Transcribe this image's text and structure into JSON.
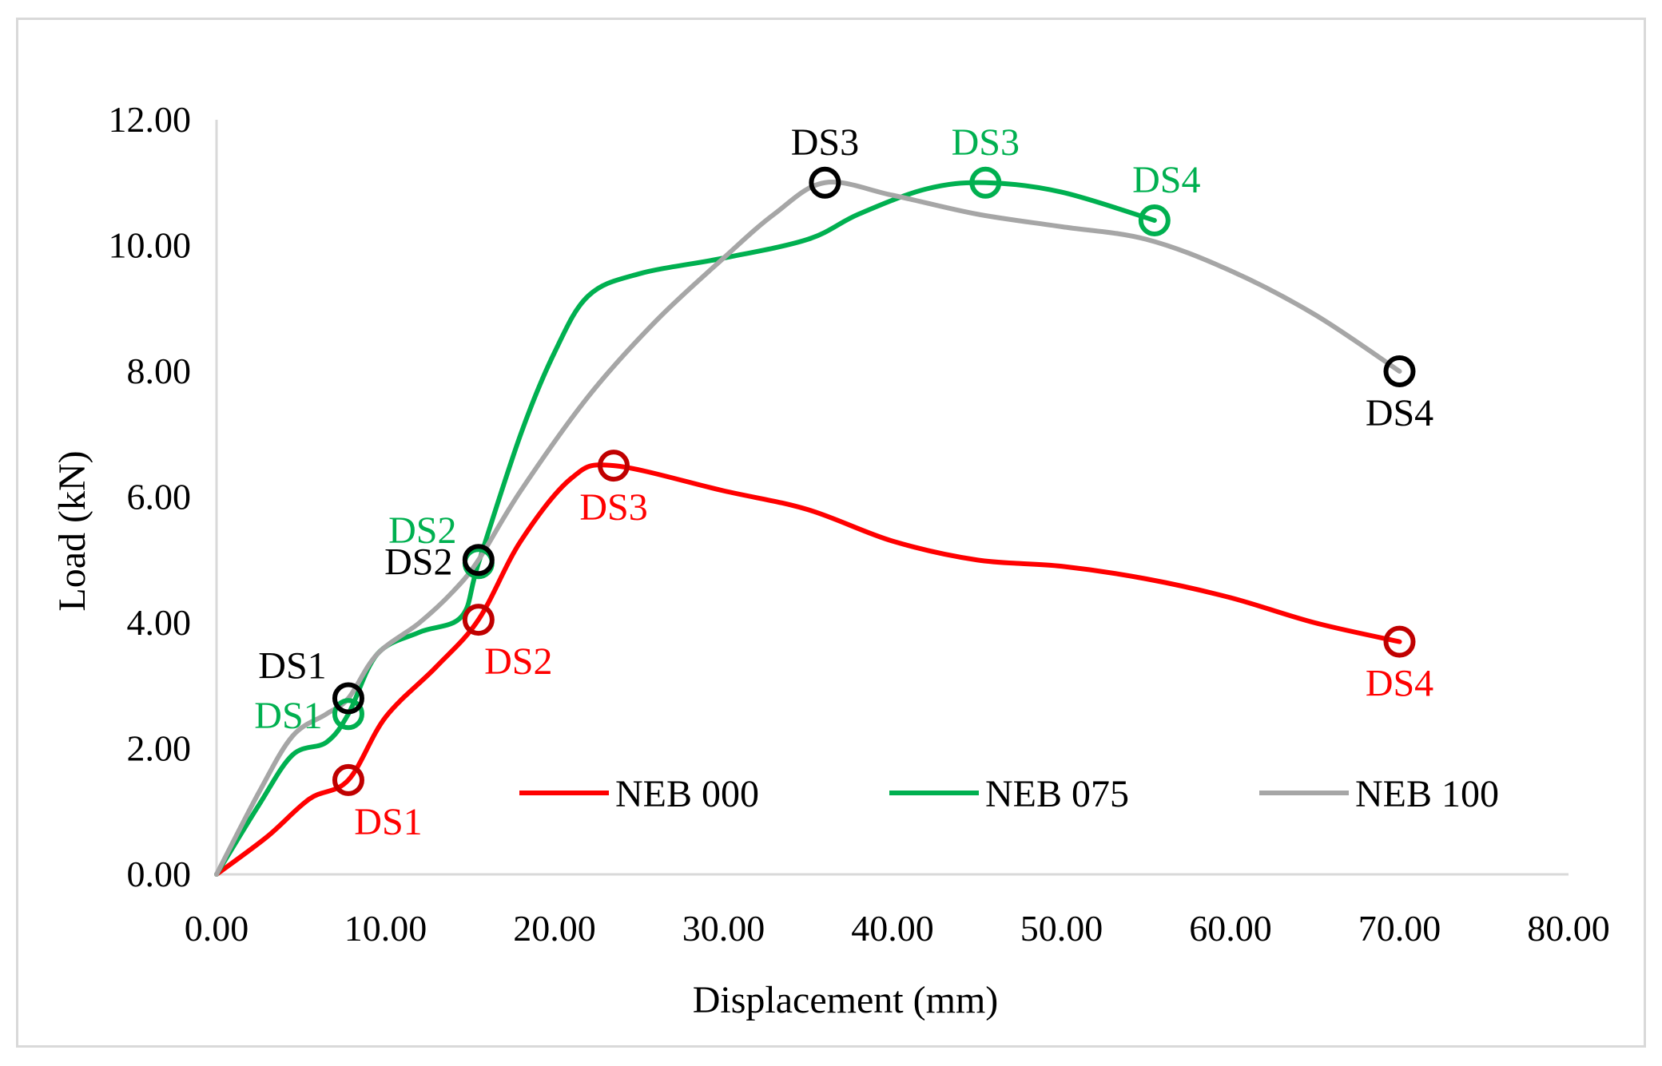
{
  "chart_data": {
    "type": "line",
    "title": "",
    "xlabel": "Displacement (mm)",
    "ylabel": "Load (kN)",
    "xlim": [
      0,
      80
    ],
    "ylim": [
      0,
      12
    ],
    "xticks": [
      0,
      10,
      20,
      30,
      40,
      50,
      60,
      70,
      80
    ],
    "yticks": [
      0,
      2,
      4,
      6,
      8,
      10,
      12
    ],
    "xtick_labels": [
      "0.00",
      "10.00",
      "20.00",
      "30.00",
      "40.00",
      "50.00",
      "60.00",
      "70.00",
      "80.00"
    ],
    "ytick_labels": [
      "0.00",
      "2.00",
      "4.00",
      "6.00",
      "8.00",
      "10.00",
      "12.00"
    ],
    "grid": false,
    "legend_position": "inside-bottom-right",
    "series": [
      {
        "name": "NEB 000",
        "color": "#ff0000",
        "marker_color": "#c00000",
        "label_color": "#ff0000",
        "points": [
          [
            0,
            0
          ],
          [
            3,
            0.6
          ],
          [
            5.5,
            1.2
          ],
          [
            7.8,
            1.5
          ],
          [
            10,
            2.5
          ],
          [
            13,
            3.3
          ],
          [
            15.5,
            4.05
          ],
          [
            18,
            5.3
          ],
          [
            21,
            6.3
          ],
          [
            23.5,
            6.5
          ],
          [
            30,
            6.1
          ],
          [
            35,
            5.8
          ],
          [
            40,
            5.3
          ],
          [
            45,
            5.0
          ],
          [
            50,
            4.9
          ],
          [
            55,
            4.7
          ],
          [
            60,
            4.4
          ],
          [
            65,
            4.0
          ],
          [
            70,
            3.7
          ]
        ],
        "damage_states": [
          {
            "label": "DS1",
            "x": 7.8,
            "y": 1.5,
            "label_pos": "below-right"
          },
          {
            "label": "DS2",
            "x": 15.5,
            "y": 4.05,
            "label_pos": "below-right"
          },
          {
            "label": "DS3",
            "x": 23.5,
            "y": 6.5,
            "label_pos": "below"
          },
          {
            "label": "DS4",
            "x": 70,
            "y": 3.7,
            "label_pos": "below"
          }
        ]
      },
      {
        "name": "NEB 075",
        "color": "#00b050",
        "marker_color": "#00b050",
        "label_color": "#00b050",
        "points": [
          [
            0,
            0
          ],
          [
            2.5,
            1.1
          ],
          [
            4.5,
            1.9
          ],
          [
            6.5,
            2.1
          ],
          [
            7.8,
            2.55
          ],
          [
            9.5,
            3.5
          ],
          [
            12,
            3.85
          ],
          [
            14.5,
            4.1
          ],
          [
            15.5,
            4.95
          ],
          [
            18,
            7.0
          ],
          [
            20,
            8.3
          ],
          [
            22,
            9.2
          ],
          [
            25,
            9.55
          ],
          [
            30,
            9.8
          ],
          [
            35,
            10.1
          ],
          [
            38,
            10.5
          ],
          [
            42,
            10.9
          ],
          [
            45.5,
            11.0
          ],
          [
            50,
            10.85
          ],
          [
            55.5,
            10.4
          ]
        ],
        "damage_states": [
          {
            "label": "DS1",
            "x": 7.8,
            "y": 2.55,
            "label_pos": "left"
          },
          {
            "label": "DS2",
            "x": 15.5,
            "y": 4.95,
            "label_pos": "upper-left"
          },
          {
            "label": "DS3",
            "x": 45.5,
            "y": 11.0,
            "label_pos": "above"
          },
          {
            "label": "DS4",
            "x": 55.5,
            "y": 10.4,
            "label_pos": "above-right"
          }
        ]
      },
      {
        "name": "NEB 100",
        "color": "#a6a6a6",
        "marker_color": "#000000",
        "label_color": "#000000",
        "points": [
          [
            0,
            0
          ],
          [
            2.5,
            1.3
          ],
          [
            4.5,
            2.2
          ],
          [
            6.5,
            2.55
          ],
          [
            7.8,
            2.8
          ],
          [
            9.5,
            3.5
          ],
          [
            12,
            4.0
          ],
          [
            14,
            4.5
          ],
          [
            15.5,
            5.0
          ],
          [
            18,
            6.1
          ],
          [
            22,
            7.6
          ],
          [
            26,
            8.8
          ],
          [
            30,
            9.8
          ],
          [
            33,
            10.5
          ],
          [
            36,
            11.0
          ],
          [
            40,
            10.8
          ],
          [
            45,
            10.5
          ],
          [
            50,
            10.3
          ],
          [
            55,
            10.1
          ],
          [
            60,
            9.6
          ],
          [
            65,
            8.9
          ],
          [
            70,
            8.0
          ]
        ],
        "damage_states": [
          {
            "label": "DS1",
            "x": 7.8,
            "y": 2.8,
            "label_pos": "upper-left"
          },
          {
            "label": "DS2",
            "x": 15.5,
            "y": 5.0,
            "label_pos": "left"
          },
          {
            "label": "DS3",
            "x": 36,
            "y": 11.0,
            "label_pos": "above"
          },
          {
            "label": "DS4",
            "x": 70,
            "y": 8.0,
            "label_pos": "below"
          }
        ]
      }
    ]
  }
}
